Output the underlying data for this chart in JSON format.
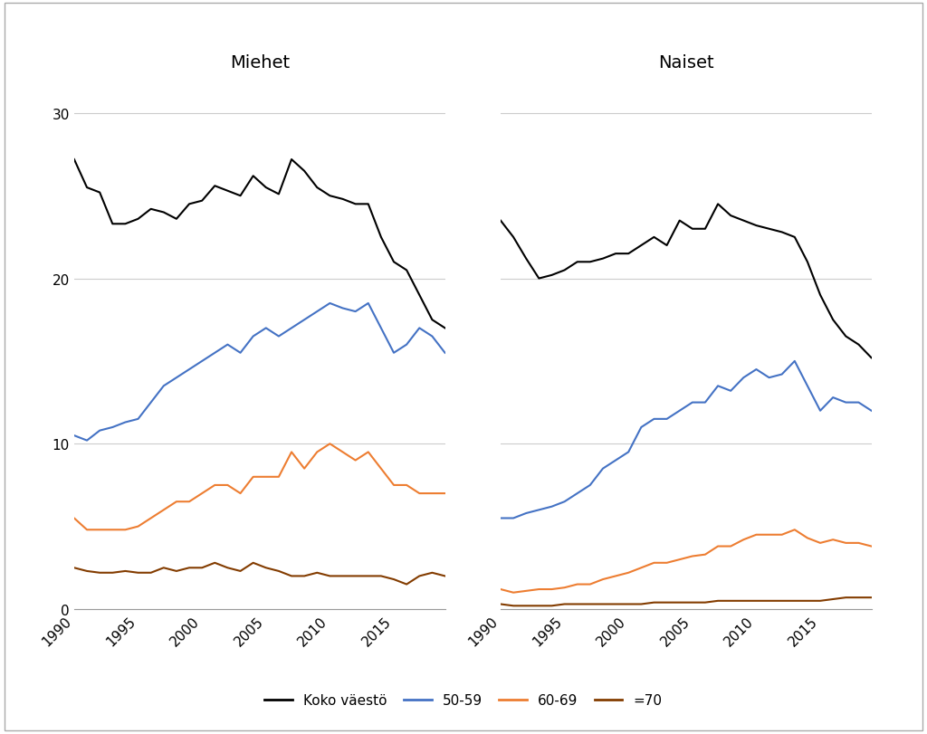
{
  "years": [
    1990,
    1991,
    1992,
    1993,
    1994,
    1995,
    1996,
    1997,
    1998,
    1999,
    2000,
    2001,
    2002,
    2003,
    2004,
    2005,
    2006,
    2007,
    2008,
    2009,
    2010,
    2011,
    2012,
    2013,
    2014,
    2015,
    2016,
    2017,
    2018,
    2019
  ],
  "men": {
    "koko": [
      27.2,
      25.5,
      25.2,
      23.3,
      23.3,
      23.6,
      24.2,
      24.0,
      23.6,
      24.5,
      24.7,
      25.6,
      25.3,
      25.0,
      26.2,
      25.5,
      25.1,
      27.2,
      26.5,
      25.5,
      25.0,
      24.8,
      24.5,
      24.5,
      22.5,
      21.0,
      20.5,
      19.0,
      17.5,
      17.0
    ],
    "50_59": [
      10.5,
      10.2,
      10.8,
      11.0,
      11.3,
      11.5,
      12.5,
      13.5,
      14.0,
      14.5,
      15.0,
      15.5,
      16.0,
      15.5,
      16.5,
      17.0,
      16.5,
      17.0,
      17.5,
      18.0,
      18.5,
      18.2,
      18.0,
      18.5,
      17.0,
      15.5,
      16.0,
      17.0,
      16.5,
      15.5
    ],
    "60_69": [
      5.5,
      4.8,
      4.8,
      4.8,
      4.8,
      5.0,
      5.5,
      6.0,
      6.5,
      6.5,
      7.0,
      7.5,
      7.5,
      7.0,
      8.0,
      8.0,
      8.0,
      9.5,
      8.5,
      9.5,
      10.0,
      9.5,
      9.0,
      9.5,
      8.5,
      7.5,
      7.5,
      7.0,
      7.0,
      7.0
    ],
    "70plus": [
      2.5,
      2.3,
      2.2,
      2.2,
      2.3,
      2.2,
      2.2,
      2.5,
      2.3,
      2.5,
      2.5,
      2.8,
      2.5,
      2.3,
      2.8,
      2.5,
      2.3,
      2.0,
      2.0,
      2.2,
      2.0,
      2.0,
      2.0,
      2.0,
      2.0,
      1.8,
      1.5,
      2.0,
      2.2,
      2.0
    ]
  },
  "women": {
    "koko": [
      23.5,
      22.5,
      21.2,
      20.0,
      20.2,
      20.5,
      21.0,
      21.0,
      21.2,
      21.5,
      21.5,
      22.0,
      22.5,
      22.0,
      23.5,
      23.0,
      23.0,
      24.5,
      23.8,
      23.5,
      23.2,
      23.0,
      22.8,
      22.5,
      21.0,
      19.0,
      17.5,
      16.5,
      16.0,
      15.2
    ],
    "50_59": [
      5.5,
      5.5,
      5.8,
      6.0,
      6.2,
      6.5,
      7.0,
      7.5,
      8.5,
      9.0,
      9.5,
      11.0,
      11.5,
      11.5,
      12.0,
      12.5,
      12.5,
      13.5,
      13.2,
      14.0,
      14.5,
      14.0,
      14.2,
      15.0,
      13.5,
      12.0,
      12.8,
      12.5,
      12.5,
      12.0
    ],
    "60_69": [
      1.2,
      1.0,
      1.1,
      1.2,
      1.2,
      1.3,
      1.5,
      1.5,
      1.8,
      2.0,
      2.2,
      2.5,
      2.8,
      2.8,
      3.0,
      3.2,
      3.3,
      3.8,
      3.8,
      4.2,
      4.5,
      4.5,
      4.5,
      4.8,
      4.3,
      4.0,
      4.2,
      4.0,
      4.0,
      3.8
    ],
    "70plus": [
      0.3,
      0.2,
      0.2,
      0.2,
      0.2,
      0.3,
      0.3,
      0.3,
      0.3,
      0.3,
      0.3,
      0.3,
      0.4,
      0.4,
      0.4,
      0.4,
      0.4,
      0.5,
      0.5,
      0.5,
      0.5,
      0.5,
      0.5,
      0.5,
      0.5,
      0.5,
      0.6,
      0.7,
      0.7,
      0.7
    ]
  },
  "colors": {
    "koko": "#000000",
    "50_59": "#4472c4",
    "60_69": "#ed7d31",
    "70plus": "#833c00"
  },
  "ylim": [
    0,
    32
  ],
  "yticks": [
    0,
    10,
    20,
    30
  ],
  "xticks": [
    1990,
    1995,
    2000,
    2005,
    2010,
    2015
  ],
  "background": "#ffffff",
  "border_color": "#cccccc"
}
